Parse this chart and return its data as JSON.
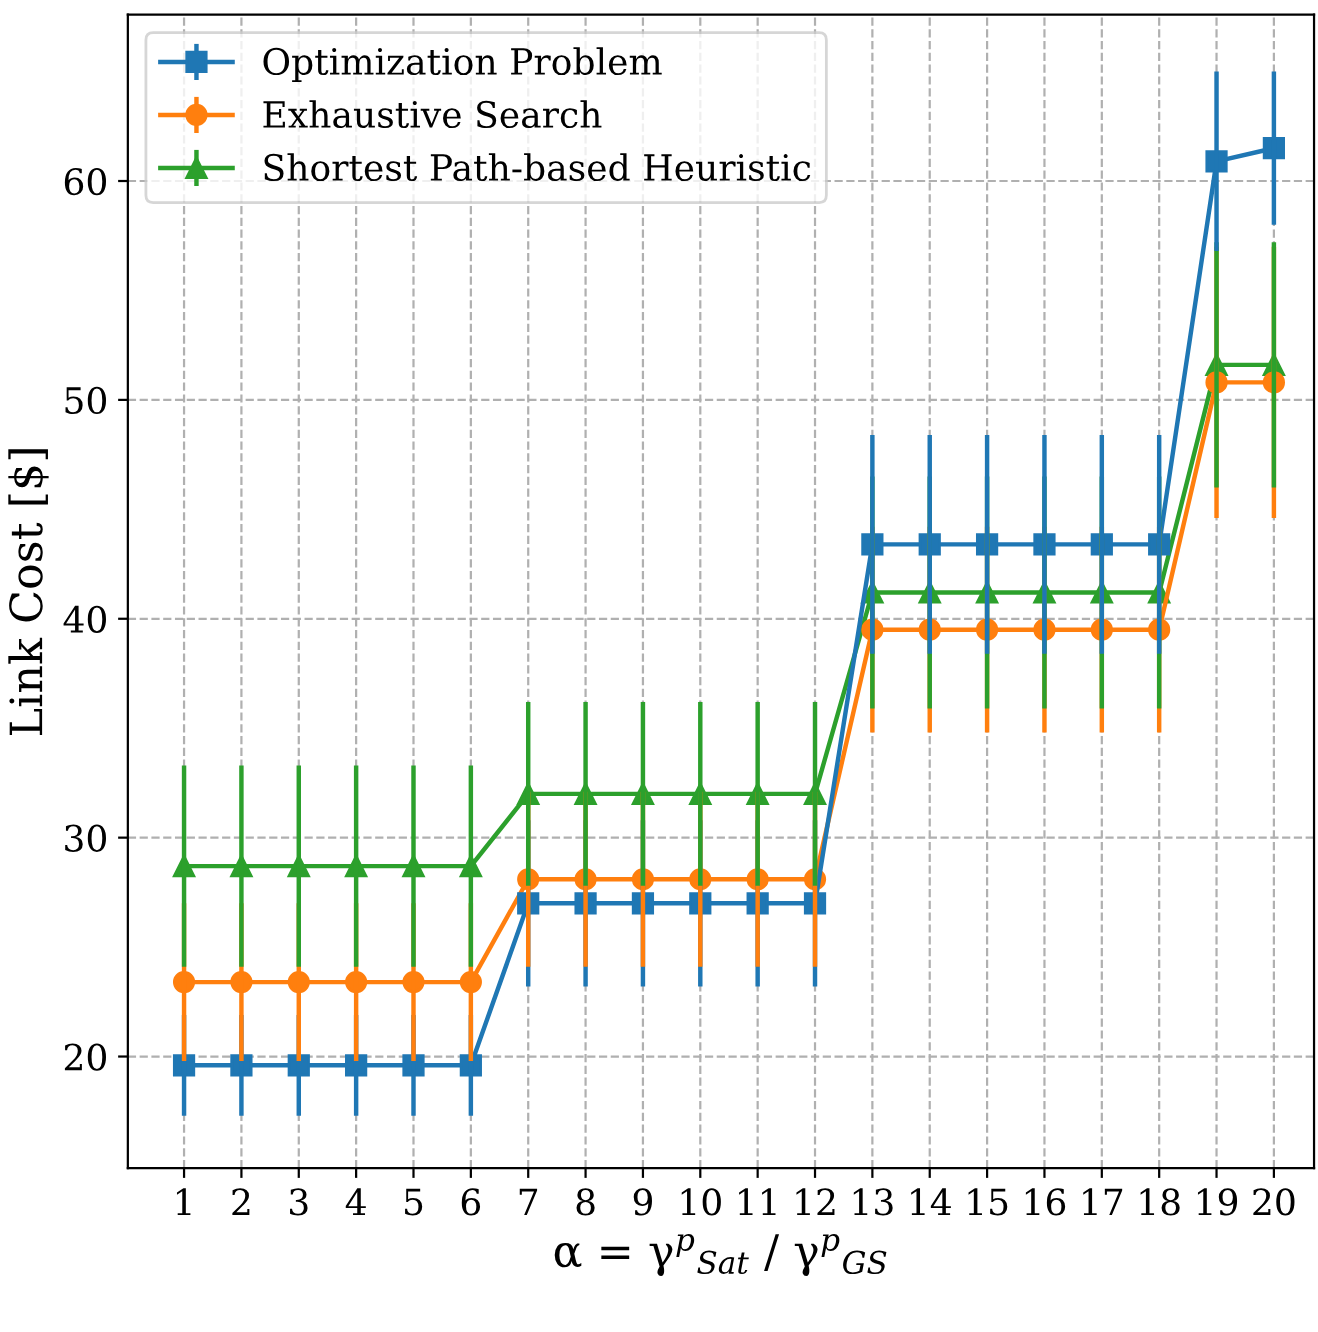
{
  "chart_data": {
    "type": "line",
    "xlabel": "α = γ$^{p}$$_{Sat}$ / γ$^{p}$$_{GS}$",
    "ylabel": "Link Cost [$]",
    "x": [
      1,
      2,
      3,
      4,
      5,
      6,
      7,
      8,
      9,
      10,
      11,
      12,
      13,
      14,
      15,
      16,
      17,
      18,
      19,
      20
    ],
    "xlim": [
      0.02,
      20.7
    ],
    "xticks": [
      1,
      2,
      3,
      4,
      5,
      6,
      7,
      8,
      9,
      10,
      11,
      12,
      13,
      14,
      15,
      16,
      17,
      18,
      19,
      20
    ],
    "ylim": [
      14.9,
      67.6
    ],
    "yticks": [
      20,
      30,
      40,
      50,
      60
    ],
    "grid": true,
    "legend": "top left",
    "line_style": "solid",
    "series": [
      {
        "name": "Optimization Problem",
        "color": "#1f77b4",
        "marker": "square",
        "values": [
          19.6,
          19.6,
          19.6,
          19.6,
          19.6,
          19.6,
          27.0,
          27.0,
          27.0,
          27.0,
          27.0,
          27.0,
          43.4,
          43.4,
          43.4,
          43.4,
          43.4,
          43.4,
          60.9,
          61.5
        ],
        "errors": [
          2.3,
          2.3,
          2.3,
          2.3,
          2.3,
          2.3,
          3.8,
          3.8,
          3.8,
          3.8,
          3.8,
          3.8,
          5.0,
          5.0,
          5.0,
          5.0,
          5.0,
          5.0,
          4.1,
          3.5
        ]
      },
      {
        "name": "Exhaustive Search",
        "color": "#ff7f0e",
        "marker": "circle",
        "values": [
          23.4,
          23.4,
          23.4,
          23.4,
          23.4,
          23.4,
          28.1,
          28.1,
          28.1,
          28.1,
          28.1,
          28.1,
          39.5,
          39.5,
          39.5,
          39.5,
          39.5,
          39.5,
          50.8,
          50.8
        ],
        "errors": [
          3.6,
          3.6,
          3.6,
          3.6,
          3.6,
          3.6,
          4.0,
          4.0,
          4.0,
          4.0,
          4.0,
          4.0,
          4.7,
          4.7,
          4.7,
          4.7,
          4.7,
          4.7,
          6.2,
          6.2
        ]
      },
      {
        "name": "Shortest Path-based Heuristic",
        "color": "#2ca02c",
        "marker": "triangle",
        "values": [
          28.7,
          28.7,
          28.7,
          28.7,
          28.7,
          28.7,
          32.0,
          32.0,
          32.0,
          32.0,
          32.0,
          32.0,
          41.2,
          41.2,
          41.2,
          41.2,
          41.2,
          41.2,
          51.6,
          51.6
        ],
        "errors": [
          4.6,
          4.6,
          4.6,
          4.6,
          4.6,
          4.6,
          4.2,
          4.2,
          4.2,
          4.2,
          4.2,
          4.2,
          5.3,
          5.3,
          5.3,
          5.3,
          5.3,
          5.3,
          5.6,
          5.6
        ]
      }
    ]
  }
}
